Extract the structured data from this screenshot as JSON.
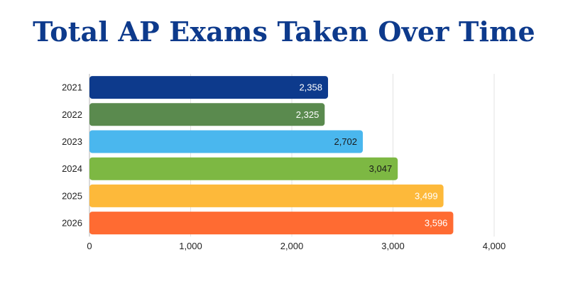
{
  "chart_data": {
    "type": "bar",
    "orientation": "horizontal",
    "title": "Total AP Exams Taken Over Time",
    "xlabel": "",
    "ylabel": "",
    "categories": [
      "2021",
      "2022",
      "2023",
      "2024",
      "2025",
      "2026"
    ],
    "values": [
      2358,
      2325,
      2702,
      3047,
      3499,
      3596
    ],
    "value_labels": [
      "2,358",
      "2,325",
      "2,702",
      "3,047",
      "3,499",
      "3,596"
    ],
    "bar_colors": [
      "#0d3a8c",
      "#5a8a4e",
      "#4ab7ee",
      "#7db843",
      "#fdb93a",
      "#ff6b32"
    ],
    "label_colors": [
      "#ffffff",
      "#ffffff",
      "#1a1a1a",
      "#1a1a1a",
      "#ffffff",
      "#ffffff"
    ],
    "xlim": [
      0,
      4000
    ],
    "xticks": [
      0,
      1000,
      2000,
      3000,
      4000
    ],
    "xtick_labels": [
      "0",
      "1,000",
      "2,000",
      "3,000",
      "4,000"
    ],
    "grid": "vertical",
    "legend": "none"
  },
  "colors": {
    "title": "#0d3a8c"
  }
}
